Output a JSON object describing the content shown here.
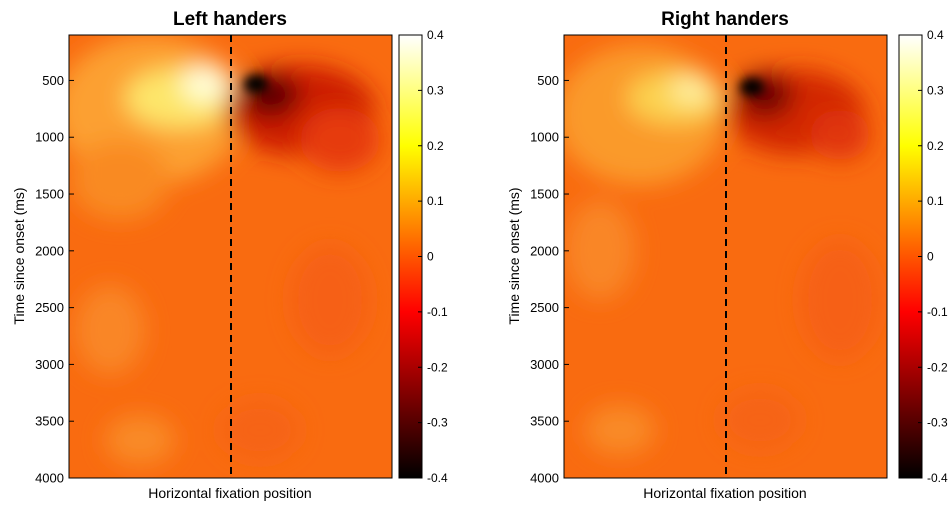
{
  "chart_data": [
    {
      "type": "heatmap",
      "title": "Left handers",
      "xlabel": "Horizontal fixation position",
      "ylabel": "Time since onset (ms)",
      "ylim": [
        100,
        4000
      ],
      "y_ticks": [
        500,
        1000,
        1500,
        2000,
        2500,
        3000,
        3500,
        4000
      ],
      "y_tick_labels": [
        "500",
        "1000",
        "1500",
        "2000",
        "2500",
        "3000",
        "3500",
        "4000"
      ],
      "divider": {
        "style": "dashed",
        "x_fraction": 0.5
      },
      "colormap": "hot",
      "color_range": [
        -0.4,
        0.4
      ],
      "colorbar_ticks": [
        0.4,
        0.3,
        0.2,
        0.1,
        0,
        -0.1,
        -0.2,
        -0.3,
        -0.4
      ],
      "colorbar_tick_labels": [
        "0.4",
        "0.3",
        "0.2",
        "0.1",
        "0",
        "-0.1",
        "-0.2",
        "-0.3",
        "-0.4"
      ],
      "background_value": 0.05,
      "hotspots": [
        {
          "side": "left",
          "time_ms": 480,
          "value": 0.33
        },
        {
          "side": "right",
          "time_ms": 430,
          "value": -0.36
        }
      ]
    },
    {
      "type": "heatmap",
      "title": "Right handers",
      "xlabel": "Horizontal fixation position",
      "ylabel": "Time since onset (ms)",
      "ylim": [
        100,
        4000
      ],
      "y_ticks": [
        500,
        1000,
        1500,
        2000,
        2500,
        3000,
        3500,
        4000
      ],
      "y_tick_labels": [
        "500",
        "1000",
        "1500",
        "2000",
        "2500",
        "3000",
        "3500",
        "4000"
      ],
      "divider": {
        "style": "dashed",
        "x_fraction": 0.5
      },
      "colormap": "hot",
      "color_range": [
        -0.4,
        0.4
      ],
      "colorbar_ticks": [
        0.4,
        0.3,
        0.2,
        0.1,
        0,
        -0.1,
        -0.2,
        -0.3,
        -0.4
      ],
      "colorbar_tick_labels": [
        "0.4",
        "0.3",
        "0.2",
        "0.1",
        "0",
        "-0.1",
        "-0.2",
        "-0.3",
        "-0.4"
      ],
      "background_value": 0.05,
      "hotspots": [
        {
          "side": "left",
          "time_ms": 480,
          "value": 0.25
        },
        {
          "side": "right",
          "time_ms": 460,
          "value": -0.38
        }
      ]
    }
  ]
}
